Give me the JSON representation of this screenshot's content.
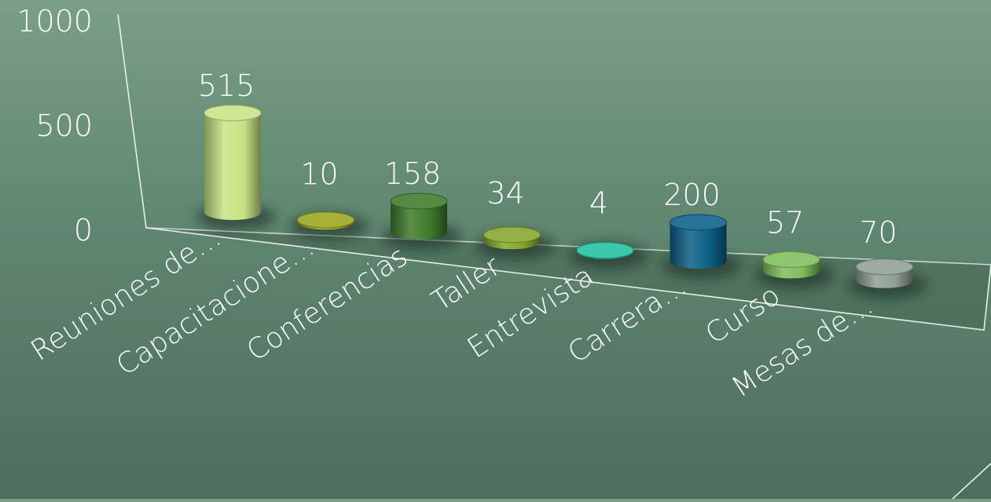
{
  "chart_data": {
    "type": "bar",
    "style": "3d-cylinder",
    "categories": [
      "Reuniones de…",
      "Capacitacione…",
      "Conferencias",
      "Taller",
      "Entrevista",
      "Carrera…",
      "Curso",
      "Mesas de…"
    ],
    "values": [
      515,
      10,
      158,
      34,
      4,
      200,
      57,
      70
    ],
    "data_labels": [
      "515",
      "10",
      "158",
      "34",
      "4",
      "200",
      "57",
      "70"
    ],
    "colors": [
      "#c6e486",
      "#9aa51e",
      "#3d7a2a",
      "#86a52a",
      "#22c1a1",
      "#0b5f86",
      "#7fbd5c",
      "#8e9f95"
    ],
    "y_ticks": [
      "0",
      "500",
      "1000"
    ],
    "ylim": [
      0,
      1000
    ],
    "grid": false,
    "legend": "none"
  }
}
